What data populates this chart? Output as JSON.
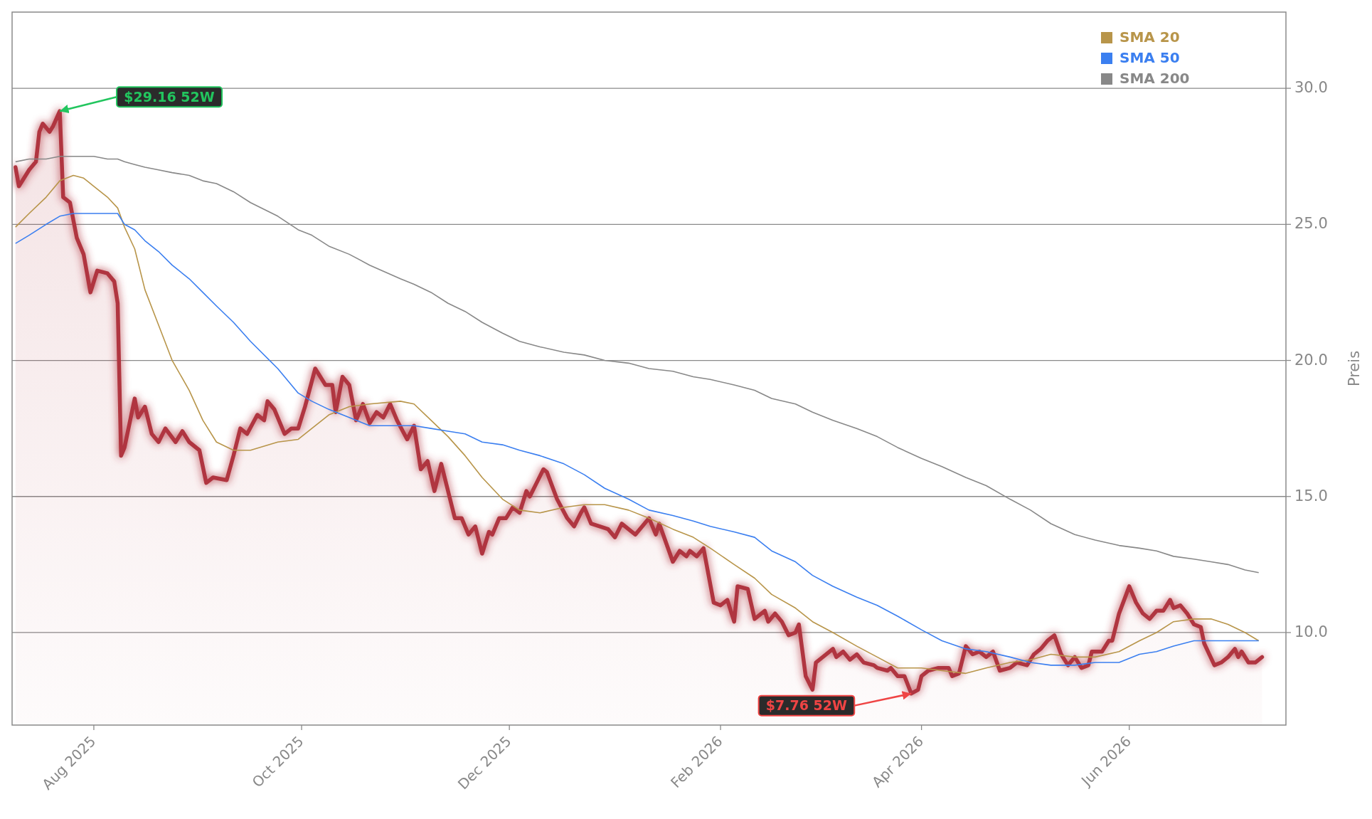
{
  "chart_data": {
    "type": "line",
    "ylabel": "Preis",
    "xlim": [
      "2025-07-08",
      "2026-07-17"
    ],
    "ylim": [
      6.6,
      32.8
    ],
    "xticks": [
      {
        "value": "2025-08-01",
        "label": "Aug 2025"
      },
      {
        "value": "2025-10-01",
        "label": "Oct 2025"
      },
      {
        "value": "2025-12-01",
        "label": "Dec 2025"
      },
      {
        "value": "2026-02-01",
        "label": "Feb 2026"
      },
      {
        "value": "2026-04-01",
        "label": "Apr 2026"
      },
      {
        "value": "2026-06-01",
        "label": "Jun 2026"
      }
    ],
    "yticks": [
      {
        "value": 10,
        "label": "10.0"
      },
      {
        "value": 15,
        "label": "15.0"
      },
      {
        "value": 20,
        "label": "20.0"
      },
      {
        "value": 25,
        "label": "25.0"
      },
      {
        "value": 30,
        "label": "30.0"
      }
    ],
    "grid": "y",
    "legend": "top right",
    "annotations": [
      {
        "text": "$29.16 52W",
        "x": "2025-07-22",
        "y": 29.16
      },
      {
        "text": "$7.76 52W",
        "x": "2026-03-29",
        "y": 7.76
      }
    ],
    "x": [
      "2025-07-09",
      "2025-07-13",
      "2025-07-18",
      "2025-07-22",
      "2025-07-26",
      "2025-07-29",
      "2025-08-01",
      "2025-08-05",
      "2025-08-08",
      "2025-08-10",
      "2025-08-13",
      "2025-08-16",
      "2025-08-20",
      "2025-08-24",
      "2025-08-29",
      "2025-09-02",
      "2025-09-06",
      "2025-09-11",
      "2025-09-16",
      "2025-09-24",
      "2025-09-30",
      "2025-10-04",
      "2025-10-09",
      "2025-10-15",
      "2025-10-21",
      "2025-10-30",
      "2025-11-03",
      "2025-11-08",
      "2025-11-13",
      "2025-11-18",
      "2025-11-23",
      "2025-11-29",
      "2025-12-04",
      "2025-12-10",
      "2025-12-17",
      "2025-12-23",
      "2025-12-29",
      "2026-01-05",
      "2026-01-11",
      "2026-01-18",
      "2026-01-24",
      "2026-01-29",
      "2026-02-05",
      "2026-02-11",
      "2026-02-16",
      "2026-02-23",
      "2026-02-28",
      "2026-03-06",
      "2026-03-13",
      "2026-03-19",
      "2026-03-25",
      "2026-04-01",
      "2026-04-07",
      "2026-04-14",
      "2026-04-20",
      "2026-04-27",
      "2026-05-03",
      "2026-05-09",
      "2026-05-16",
      "2026-05-22",
      "2026-05-29",
      "2026-06-04",
      "2026-06-09",
      "2026-06-14",
      "2026-06-20",
      "2026-06-25",
      "2026-06-30",
      "2026-07-05",
      "2026-07-09"
    ],
    "series": [
      {
        "type": "area",
        "color": "#b0353f",
        "x": [
          "2025-07-09",
          "2025-07-10",
          "2025-07-13",
          "2025-07-15",
          "2025-07-16",
          "2025-07-17",
          "2025-07-19",
          "2025-07-20",
          "2025-07-22",
          "2025-07-23",
          "2025-07-25",
          "2025-07-27",
          "2025-07-29",
          "2025-07-31",
          "2025-08-02",
          "2025-08-05",
          "2025-08-07",
          "2025-08-08",
          "2025-08-09",
          "2025-08-10",
          "2025-08-13",
          "2025-08-14",
          "2025-08-16",
          "2025-08-18",
          "2025-08-20",
          "2025-08-22",
          "2025-08-25",
          "2025-08-27",
          "2025-08-29",
          "2025-09-01",
          "2025-09-03",
          "2025-09-05",
          "2025-09-09",
          "2025-09-11",
          "2025-09-13",
          "2025-09-15",
          "2025-09-18",
          "2025-09-20",
          "2025-09-21",
          "2025-09-23",
          "2025-09-26",
          "2025-09-28",
          "2025-09-30",
          "2025-10-02",
          "2025-10-05",
          "2025-10-08",
          "2025-10-10",
          "2025-10-11",
          "2025-10-13",
          "2025-10-15",
          "2025-10-17",
          "2025-10-19",
          "2025-10-21",
          "2025-10-23",
          "2025-10-25",
          "2025-10-27",
          "2025-10-29",
          "2025-11-01",
          "2025-11-03",
          "2025-11-05",
          "2025-11-07",
          "2025-11-09",
          "2025-11-11",
          "2025-11-13",
          "2025-11-15",
          "2025-11-17",
          "2025-11-19",
          "2025-11-21",
          "2025-11-23",
          "2025-11-25",
          "2025-11-26",
          "2025-11-28",
          "2025-11-30",
          "2025-12-02",
          "2025-12-04",
          "2025-12-06",
          "2025-12-07",
          "2025-12-09",
          "2025-12-11",
          "2025-12-12",
          "2025-12-15",
          "2025-12-18",
          "2025-12-20",
          "2025-12-22",
          "2025-12-23",
          "2025-12-25",
          "2025-12-30",
          "2026-01-01",
          "2026-01-03",
          "2026-01-07",
          "2026-01-09",
          "2026-01-11",
          "2026-01-13",
          "2026-01-14",
          "2026-01-16",
          "2026-01-18",
          "2026-01-20",
          "2026-01-22",
          "2026-01-23",
          "2026-01-25",
          "2026-01-27",
          "2026-01-30",
          "2026-02-01",
          "2026-02-03",
          "2026-02-05",
          "2026-02-06",
          "2026-02-09",
          "2026-02-11",
          "2026-02-14",
          "2026-02-15",
          "2026-02-17",
          "2026-02-19",
          "2026-02-21",
          "2026-02-23",
          "2026-02-24",
          "2026-02-26",
          "2026-02-28",
          "2026-03-01",
          "2026-03-04",
          "2026-03-06",
          "2026-03-07",
          "2026-03-09",
          "2026-03-11",
          "2026-03-13",
          "2026-03-15",
          "2026-03-18",
          "2026-03-19",
          "2026-03-22",
          "2026-03-23",
          "2026-03-25",
          "2026-03-27",
          "2026-03-29",
          "2026-03-31",
          "2026-04-01",
          "2026-04-03",
          "2026-04-06",
          "2026-04-09",
          "2026-04-10",
          "2026-04-12",
          "2026-04-14",
          "2026-04-16",
          "2026-04-18",
          "2026-04-20",
          "2026-04-22",
          "2026-04-24",
          "2026-04-27",
          "2026-04-29",
          "2026-05-02",
          "2026-05-04",
          "2026-05-06",
          "2026-05-08",
          "2026-05-10",
          "2026-05-12",
          "2026-05-14",
          "2026-05-16",
          "2026-05-18",
          "2026-05-20",
          "2026-05-21",
          "2026-05-24",
          "2026-05-26",
          "2026-05-27",
          "2026-05-29",
          "2026-06-01",
          "2026-06-03",
          "2026-06-05",
          "2026-06-07",
          "2026-06-09",
          "2026-06-11",
          "2026-06-13",
          "2026-06-14",
          "2026-06-16",
          "2026-06-18",
          "2026-06-20",
          "2026-06-22",
          "2026-06-23",
          "2026-06-26",
          "2026-06-28",
          "2026-06-30",
          "2026-07-02",
          "2026-07-03",
          "2026-07-04",
          "2026-07-06",
          "2026-07-08",
          "2026-07-10"
        ],
        "values": [
          27.1,
          26.4,
          27.0,
          27.3,
          28.4,
          28.7,
          28.4,
          28.6,
          29.16,
          26.0,
          25.8,
          24.5,
          23.9,
          22.5,
          23.3,
          23.2,
          22.9,
          22.1,
          16.5,
          16.8,
          18.6,
          17.9,
          18.3,
          17.3,
          17.0,
          17.5,
          17.0,
          17.4,
          17.0,
          16.7,
          15.5,
          15.7,
          15.6,
          16.5,
          17.5,
          17.3,
          18.0,
          17.8,
          18.5,
          18.2,
          17.3,
          17.5,
          17.5,
          18.3,
          19.7,
          19.1,
          19.1,
          18.1,
          19.4,
          19.1,
          17.8,
          18.4,
          17.7,
          18.1,
          17.9,
          18.4,
          17.8,
          17.1,
          17.6,
          16.0,
          16.3,
          15.2,
          16.2,
          15.2,
          14.2,
          14.2,
          13.6,
          13.9,
          12.9,
          13.7,
          13.6,
          14.2,
          14.2,
          14.6,
          14.4,
          15.2,
          15.0,
          15.5,
          16.0,
          15.9,
          14.9,
          14.2,
          13.9,
          14.4,
          14.6,
          14.0,
          13.8,
          13.5,
          14.0,
          13.6,
          13.9,
          14.2,
          13.6,
          14.0,
          13.3,
          12.6,
          13.0,
          12.8,
          13.0,
          12.8,
          13.1,
          11.1,
          11.0,
          11.2,
          10.4,
          11.7,
          11.6,
          10.5,
          10.8,
          10.4,
          10.7,
          10.4,
          9.9,
          10.0,
          10.3,
          8.4,
          7.9,
          8.9,
          9.2,
          9.4,
          9.1,
          9.3,
          9.0,
          9.2,
          8.9,
          8.8,
          8.7,
          8.6,
          8.7,
          8.4,
          8.4,
          7.76,
          7.9,
          8.4,
          8.6,
          8.7,
          8.7,
          8.4,
          8.5,
          9.5,
          9.2,
          9.3,
          9.1,
          9.3,
          8.6,
          8.7,
          8.9,
          8.8,
          9.2,
          9.4,
          9.7,
          9.9,
          9.2,
          8.8,
          9.1,
          8.7,
          8.8,
          9.3,
          9.3,
          9.7,
          9.7,
          10.7,
          11.7,
          11.1,
          10.7,
          10.5,
          10.8,
          10.8,
          11.2,
          10.9,
          11.0,
          10.7,
          10.3,
          10.2,
          9.6,
          8.8,
          8.9,
          9.1,
          9.4,
          9.1,
          9.3,
          8.9,
          8.9,
          9.1
        ]
      },
      {
        "type": "line",
        "name": "SMA 20",
        "color": "#b8954a",
        "values": [
          24.9,
          25.4,
          26.0,
          26.6,
          26.8,
          26.7,
          26.4,
          26.0,
          25.6,
          24.9,
          24.1,
          22.6,
          21.3,
          20.0,
          18.9,
          17.8,
          17.0,
          16.7,
          16.7,
          17.0,
          17.1,
          17.5,
          18.0,
          18.3,
          18.4,
          18.5,
          18.4,
          17.8,
          17.2,
          16.5,
          15.7,
          14.9,
          14.5,
          14.4,
          14.6,
          14.7,
          14.7,
          14.5,
          14.2,
          13.8,
          13.5,
          13.1,
          12.5,
          12.0,
          11.4,
          10.9,
          10.4,
          10.0,
          9.5,
          9.1,
          8.7,
          8.7,
          8.6,
          8.5,
          8.7,
          8.9,
          9.0,
          9.2,
          9.1,
          9.1,
          9.3,
          9.7,
          10.0,
          10.4,
          10.5,
          10.5,
          10.3,
          10.0,
          9.7
        ]
      },
      {
        "type": "line",
        "name": "SMA 50",
        "color": "#3b7ff0",
        "values": [
          24.3,
          24.6,
          25.0,
          25.3,
          25.4,
          25.4,
          25.4,
          25.4,
          25.4,
          25.0,
          24.8,
          24.4,
          24.0,
          23.5,
          23.0,
          22.5,
          22.0,
          21.4,
          20.7,
          19.7,
          18.8,
          18.5,
          18.2,
          17.9,
          17.6,
          17.6,
          17.6,
          17.5,
          17.4,
          17.3,
          17.0,
          16.9,
          16.7,
          16.5,
          16.2,
          15.8,
          15.3,
          14.9,
          14.5,
          14.3,
          14.1,
          13.9,
          13.7,
          13.5,
          13.0,
          12.6,
          12.1,
          11.7,
          11.3,
          11.0,
          10.6,
          10.1,
          9.7,
          9.4,
          9.3,
          9.1,
          8.9,
          8.8,
          8.8,
          8.9,
          8.9,
          9.2,
          9.3,
          9.5,
          9.7,
          9.7,
          9.7,
          9.7,
          9.7
        ]
      },
      {
        "type": "line",
        "name": "SMA 200",
        "color": "#888888",
        "values": [
          27.3,
          27.4,
          27.4,
          27.5,
          27.5,
          27.5,
          27.5,
          27.4,
          27.4,
          27.3,
          27.2,
          27.1,
          27.0,
          26.9,
          26.8,
          26.6,
          26.5,
          26.2,
          25.8,
          25.3,
          24.8,
          24.6,
          24.2,
          23.9,
          23.5,
          23.0,
          22.8,
          22.5,
          22.1,
          21.8,
          21.4,
          21.0,
          20.7,
          20.5,
          20.3,
          20.2,
          20.0,
          19.9,
          19.7,
          19.6,
          19.4,
          19.3,
          19.1,
          18.9,
          18.6,
          18.4,
          18.1,
          17.8,
          17.5,
          17.2,
          16.8,
          16.4,
          16.1,
          15.7,
          15.4,
          14.9,
          14.5,
          14.0,
          13.6,
          13.4,
          13.2,
          13.1,
          13.0,
          12.8,
          12.7,
          12.6,
          12.5,
          12.3,
          12.2
        ]
      }
    ]
  }
}
